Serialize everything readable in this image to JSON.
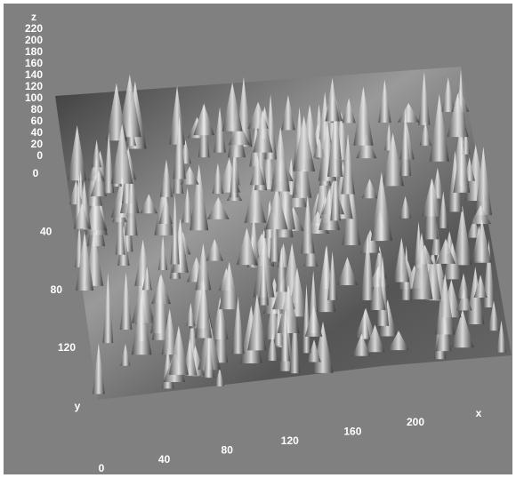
{
  "chart_data": {
    "type": "surface",
    "zlabel": "z",
    "ylabel": "y",
    "xlabel": "x",
    "zticks": [
      0,
      20,
      40,
      60,
      80,
      100,
      120,
      140,
      160,
      180,
      200,
      220
    ],
    "yticks": [
      0,
      40,
      80,
      120
    ],
    "xticks": [
      0,
      40,
      80,
      120,
      160,
      200
    ]
  }
}
